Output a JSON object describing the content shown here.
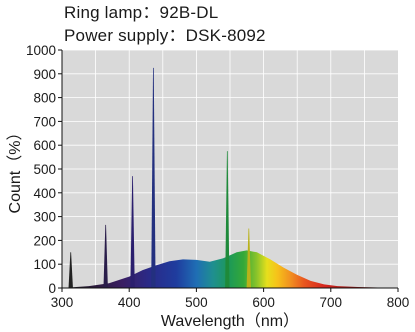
{
  "header": {
    "line1": "Ring lamp：92B-DL",
    "line2": "Power supply：DSK-8092"
  },
  "chart_data": {
    "type": "area",
    "title": "",
    "xlabel": "Wavelength（nm）",
    "ylabel": "Count（%）",
    "xlim": [
      300,
      800
    ],
    "ylim": [
      0,
      1000
    ],
    "x_ticks": [
      300,
      400,
      500,
      600,
      700,
      800
    ],
    "y_ticks": [
      0,
      100,
      200,
      300,
      400,
      500,
      600,
      700,
      800,
      900,
      1000
    ],
    "grid": true,
    "colors": {
      "plot_bg": "#d9d9d9",
      "grid": "#ffffff",
      "axis": "#111111"
    },
    "broad_band": [
      [
        300,
        0
      ],
      [
        340,
        8
      ],
      [
        370,
        20
      ],
      [
        400,
        48
      ],
      [
        420,
        75
      ],
      [
        440,
        95
      ],
      [
        460,
        112
      ],
      [
        480,
        120
      ],
      [
        500,
        118
      ],
      [
        520,
        110
      ],
      [
        540,
        125
      ],
      [
        560,
        150
      ],
      [
        575,
        158
      ],
      [
        590,
        150
      ],
      [
        610,
        120
      ],
      [
        630,
        85
      ],
      [
        650,
        55
      ],
      [
        670,
        30
      ],
      [
        690,
        15
      ],
      [
        710,
        8
      ],
      [
        740,
        4
      ],
      [
        770,
        2
      ],
      [
        800,
        0
      ]
    ],
    "peaks": [
      {
        "x": 313,
        "y": 150
      },
      {
        "x": 365,
        "y": 265
      },
      {
        "x": 405,
        "y": 470
      },
      {
        "x": 436,
        "y": 925
      },
      {
        "x": 546,
        "y": 575
      },
      {
        "x": 578,
        "y": 250
      }
    ]
  }
}
